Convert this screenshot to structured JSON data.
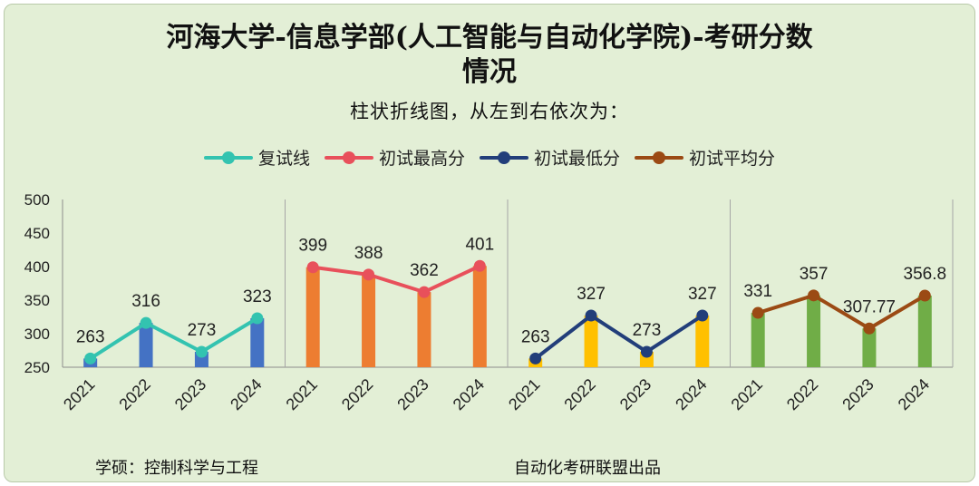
{
  "title_line1": "河海大学-信息学部(人工智能与自动化学院)-考研分数",
  "title_line2": "情况",
  "subtitle": "柱状折线图，从左到右依次为：",
  "footer": {
    "left": "学硕：控制科学与工程",
    "right": "自动化考研联盟出品"
  },
  "chart_data": {
    "type": "bar",
    "ylim": [
      250,
      500
    ],
    "yticks": [
      250,
      300,
      350,
      400,
      450,
      500
    ],
    "categories": [
      "2021",
      "2022",
      "2023",
      "2024"
    ],
    "series": [
      {
        "name": "复试线",
        "values": [
          263,
          316,
          273,
          323
        ],
        "labels": [
          "263",
          "316",
          "273",
          "323"
        ],
        "bar_color": "#4472c4",
        "line_color": "#33c3b0"
      },
      {
        "name": "初试最高分",
        "values": [
          399,
          388,
          362,
          401
        ],
        "labels": [
          "399",
          "388",
          "362",
          "401"
        ],
        "bar_color": "#ed7d31",
        "line_color": "#e8505b"
      },
      {
        "name": "初试最低分",
        "values": [
          263,
          327,
          273,
          327
        ],
        "labels": [
          "263",
          "327",
          "273",
          "327"
        ],
        "bar_color": "#ffc000",
        "line_color": "#223e7a"
      },
      {
        "name": "初试平均分",
        "values": [
          331,
          357,
          307.77,
          356.8
        ],
        "labels": [
          "331",
          "357",
          "307.77",
          "356.8"
        ],
        "bar_color": "#70ad47",
        "line_color": "#9b4a14"
      }
    ]
  }
}
